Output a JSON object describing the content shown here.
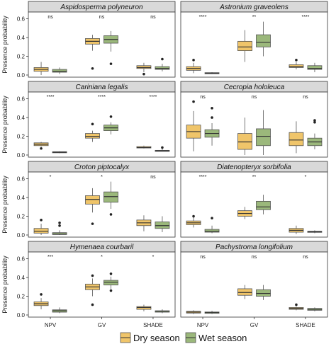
{
  "chart_data": {
    "type": "box",
    "ylabel": "Presence probability",
    "categories": [
      "NPV",
      "GV",
      "SHADE"
    ],
    "y_ticks": [
      "0.0",
      "0.2",
      "0.4",
      "0.6"
    ],
    "ylim": [
      0,
      0.65
    ],
    "grid": false,
    "legend_position": "bottom",
    "colors": {
      "dry": "#f0c56a",
      "wet": "#9bb87b",
      "outline": "#555555",
      "strip": "#d9d9d9"
    },
    "series": [
      {
        "name": "Dry season",
        "key": "dry"
      },
      {
        "name": "Wet season",
        "key": "wet"
      }
    ],
    "panels": [
      {
        "title": "Aspidosperma polyneuron",
        "significance": [
          "ns",
          "ns",
          "ns"
        ],
        "groups": [
          {
            "dry": {
              "min": 0.0,
              "q1": 0.04,
              "median": 0.06,
              "q3": 0.08,
              "max": 0.14,
              "outliers": []
            },
            "wet": {
              "min": 0.01,
              "q1": 0.03,
              "median": 0.04,
              "q3": 0.06,
              "max": 0.08,
              "outliers": []
            }
          },
          {
            "dry": {
              "min": 0.26,
              "q1": 0.33,
              "median": 0.36,
              "q3": 0.39,
              "max": 0.43,
              "outliers": [
                0.07
              ]
            },
            "wet": {
              "min": 0.25,
              "q1": 0.34,
              "median": 0.38,
              "q3": 0.42,
              "max": 0.47,
              "outliers": [
                0.12
              ]
            }
          },
          {
            "dry": {
              "min": 0.03,
              "q1": 0.07,
              "median": 0.08,
              "q3": 0.1,
              "max": 0.13,
              "outliers": [
                0.01
              ]
            },
            "wet": {
              "min": 0.04,
              "q1": 0.06,
              "median": 0.07,
              "q3": 0.09,
              "max": 0.12,
              "outliers": [
                0.17
              ]
            }
          }
        ]
      },
      {
        "title": "Astronium graveolens",
        "significance": [
          "****",
          "**",
          "****"
        ],
        "groups": [
          {
            "dry": {
              "min": 0.02,
              "q1": 0.05,
              "median": 0.07,
              "q3": 0.09,
              "max": 0.13,
              "outliers": [
                0.16
              ]
            },
            "wet": {
              "min": 0.01,
              "q1": 0.015,
              "median": 0.02,
              "q3": 0.025,
              "max": 0.03,
              "outliers": []
            }
          },
          {
            "dry": {
              "min": 0.14,
              "q1": 0.26,
              "median": 0.3,
              "q3": 0.36,
              "max": 0.48,
              "outliers": []
            },
            "wet": {
              "min": 0.2,
              "q1": 0.3,
              "median": 0.35,
              "q3": 0.43,
              "max": 0.57,
              "outliers": []
            }
          },
          {
            "dry": {
              "min": 0.06,
              "q1": 0.08,
              "median": 0.09,
              "q3": 0.11,
              "max": 0.14,
              "outliers": [
                0.16
              ]
            },
            "wet": {
              "min": 0.03,
              "q1": 0.06,
              "median": 0.07,
              "q3": 0.1,
              "max": 0.13,
              "outliers": []
            }
          }
        ]
      },
      {
        "title": "Cariniana legalis",
        "significance": [
          "****",
          "****",
          "****"
        ],
        "groups": [
          {
            "dry": {
              "min": 0.09,
              "q1": 0.1,
              "median": 0.115,
              "q3": 0.13,
              "max": 0.14,
              "outliers": [
                0.07
              ]
            },
            "wet": {
              "min": 0.02,
              "q1": 0.025,
              "median": 0.03,
              "q3": 0.035,
              "max": 0.04,
              "outliers": []
            }
          },
          {
            "dry": {
              "min": 0.14,
              "q1": 0.18,
              "median": 0.2,
              "q3": 0.23,
              "max": 0.26,
              "outliers": [
                0.33
              ]
            },
            "wet": {
              "min": 0.22,
              "q1": 0.26,
              "median": 0.29,
              "q3": 0.32,
              "max": 0.35,
              "outliers": [
                0.41
              ]
            }
          },
          {
            "dry": {
              "min": 0.07,
              "q1": 0.075,
              "median": 0.08,
              "q3": 0.09,
              "max": 0.1,
              "outliers": []
            },
            "wet": {
              "min": 0.04,
              "q1": 0.042,
              "median": 0.045,
              "q3": 0.05,
              "max": 0.07,
              "outliers": [
                0.08
              ]
            }
          }
        ]
      },
      {
        "title": "Cecropia hololeuca",
        "significance": [
          "ns",
          "ns",
          "ns"
        ],
        "groups": [
          {
            "dry": {
              "min": 0.04,
              "q1": 0.18,
              "median": 0.25,
              "q3": 0.32,
              "max": 0.47,
              "outliers": [
                0.57
              ]
            },
            "wet": {
              "min": 0.1,
              "q1": 0.19,
              "median": 0.23,
              "q3": 0.27,
              "max": 0.34,
              "outliers": [
                0.4,
                0.5
              ]
            }
          },
          {
            "dry": {
              "min": 0.0,
              "q1": 0.06,
              "median": 0.14,
              "q3": 0.23,
              "max": 0.4,
              "outliers": []
            },
            "wet": {
              "min": 0.0,
              "q1": 0.1,
              "median": 0.2,
              "q3": 0.28,
              "max": 0.48,
              "outliers": []
            }
          },
          {
            "dry": {
              "min": 0.02,
              "q1": 0.1,
              "median": 0.16,
              "q3": 0.24,
              "max": 0.36,
              "outliers": []
            },
            "wet": {
              "min": 0.06,
              "q1": 0.1,
              "median": 0.14,
              "q3": 0.18,
              "max": 0.23,
              "outliers": [
                0.35,
                0.37
              ]
            }
          }
        ]
      },
      {
        "title": "Croton piptocalyx",
        "significance": [
          "*",
          "*",
          "ns"
        ],
        "groups": [
          {
            "dry": {
              "min": 0.0,
              "q1": 0.02,
              "median": 0.04,
              "q3": 0.07,
              "max": 0.12,
              "outliers": [
                0.16
              ]
            },
            "wet": {
              "min": 0.0,
              "q1": 0.005,
              "median": 0.01,
              "q3": 0.025,
              "max": 0.05,
              "outliers": [
                0.1,
                0.13
              ]
            }
          },
          {
            "dry": {
              "min": 0.24,
              "q1": 0.33,
              "median": 0.38,
              "q3": 0.42,
              "max": 0.5,
              "outliers": [
                0.12
              ]
            },
            "wet": {
              "min": 0.28,
              "q1": 0.35,
              "median": 0.41,
              "q3": 0.46,
              "max": 0.57,
              "outliers": [
                0.22
              ]
            }
          },
          {
            "dry": {
              "min": 0.04,
              "q1": 0.1,
              "median": 0.13,
              "q3": 0.16,
              "max": 0.21,
              "outliers": []
            },
            "wet": {
              "min": 0.03,
              "q1": 0.07,
              "median": 0.1,
              "q3": 0.14,
              "max": 0.2,
              "outliers": []
            }
          }
        ]
      },
      {
        "title": "Diatenopteryx sorbifolia",
        "significance": [
          "****",
          "**",
          "*"
        ],
        "groups": [
          {
            "dry": {
              "min": 0.08,
              "q1": 0.11,
              "median": 0.13,
              "q3": 0.15,
              "max": 0.2,
              "outliers": [
                0.2
              ]
            },
            "wet": {
              "min": 0.02,
              "q1": 0.03,
              "median": 0.04,
              "q3": 0.06,
              "max": 0.1,
              "outliers": [
                0.18
              ]
            }
          },
          {
            "dry": {
              "min": 0.17,
              "q1": 0.2,
              "median": 0.23,
              "q3": 0.26,
              "max": 0.3,
              "outliers": []
            },
            "wet": {
              "min": 0.22,
              "q1": 0.27,
              "median": 0.3,
              "q3": 0.36,
              "max": 0.43,
              "outliers": []
            }
          },
          {
            "dry": {
              "min": 0.01,
              "q1": 0.03,
              "median": 0.05,
              "q3": 0.07,
              "max": 0.1,
              "outliers": []
            },
            "wet": {
              "min": 0.02,
              "q1": 0.028,
              "median": 0.035,
              "q3": 0.04,
              "max": 0.05,
              "outliers": []
            }
          }
        ]
      },
      {
        "title": "Hymenaea courbaril",
        "significance": [
          "***",
          "*",
          "*"
        ],
        "groups": [
          {
            "dry": {
              "min": 0.06,
              "q1": 0.1,
              "median": 0.12,
              "q3": 0.14,
              "max": 0.18,
              "outliers": [
                0.22
              ]
            },
            "wet": {
              "min": 0.02,
              "q1": 0.03,
              "median": 0.045,
              "q3": 0.055,
              "max": 0.08,
              "outliers": []
            }
          },
          {
            "dry": {
              "min": 0.2,
              "q1": 0.27,
              "median": 0.3,
              "q3": 0.33,
              "max": 0.39,
              "outliers": [
                0.11,
                0.42
              ]
            },
            "wet": {
              "min": 0.28,
              "q1": 0.32,
              "median": 0.35,
              "q3": 0.37,
              "max": 0.41,
              "outliers": [
                0.26,
                0.44
              ]
            }
          },
          {
            "dry": {
              "min": 0.04,
              "q1": 0.06,
              "median": 0.08,
              "q3": 0.09,
              "max": 0.11,
              "outliers": []
            },
            "wet": {
              "min": 0.02,
              "q1": 0.03,
              "median": 0.04,
              "q3": 0.045,
              "max": 0.06,
              "outliers": []
            }
          }
        ]
      },
      {
        "title": "Pachystroma longifolium",
        "significance": [
          "ns",
          "ns",
          "ns"
        ],
        "groups": [
          {
            "dry": {
              "min": 0.01,
              "q1": 0.02,
              "median": 0.03,
              "q3": 0.04,
              "max": 0.05,
              "outliers": []
            },
            "wet": {
              "min": 0.01,
              "q1": 0.018,
              "median": 0.025,
              "q3": 0.032,
              "max": 0.045,
              "outliers": []
            }
          },
          {
            "dry": {
              "min": 0.17,
              "q1": 0.21,
              "median": 0.24,
              "q3": 0.28,
              "max": 0.32,
              "outliers": []
            },
            "wet": {
              "min": 0.16,
              "q1": 0.2,
              "median": 0.23,
              "q3": 0.27,
              "max": 0.32,
              "outliers": []
            }
          },
          {
            "dry": {
              "min": 0.05,
              "q1": 0.06,
              "median": 0.07,
              "q3": 0.08,
              "max": 0.09,
              "outliers": [
                0.11
              ]
            },
            "wet": {
              "min": 0.04,
              "q1": 0.05,
              "median": 0.06,
              "q3": 0.07,
              "max": 0.08,
              "outliers": []
            }
          }
        ]
      }
    ]
  }
}
